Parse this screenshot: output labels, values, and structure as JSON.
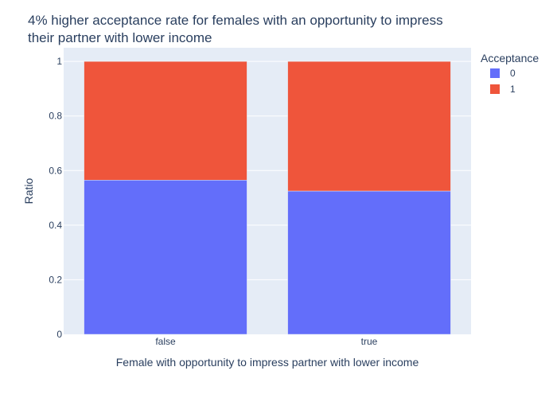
{
  "chart_data": {
    "type": "bar",
    "stacked": true,
    "title_lines": [
      "4% higher acceptance rate for females with an opportunity to impress",
      "their partner with lower income"
    ],
    "xlabel": "Female with opportunity to impress partner with lower income",
    "ylabel": "Ratio",
    "categories": [
      "false",
      "true"
    ],
    "series": [
      {
        "name": "0",
        "values": [
          0.565,
          0.525
        ],
        "color": "#636efa"
      },
      {
        "name": "1",
        "values": [
          0.435,
          0.475
        ],
        "color": "#ef553b"
      }
    ],
    "ylim": [
      0,
      1.05
    ],
    "yticks": [
      0,
      0.2,
      0.4,
      0.6,
      0.8,
      1
    ],
    "ytick_labels": [
      "0",
      "0.2",
      "0.4",
      "0.6",
      "0.8",
      "1"
    ],
    "grid": true,
    "plot_background": "#e5ecf6",
    "legend": {
      "title": "Acceptance",
      "position": "top-right"
    }
  }
}
